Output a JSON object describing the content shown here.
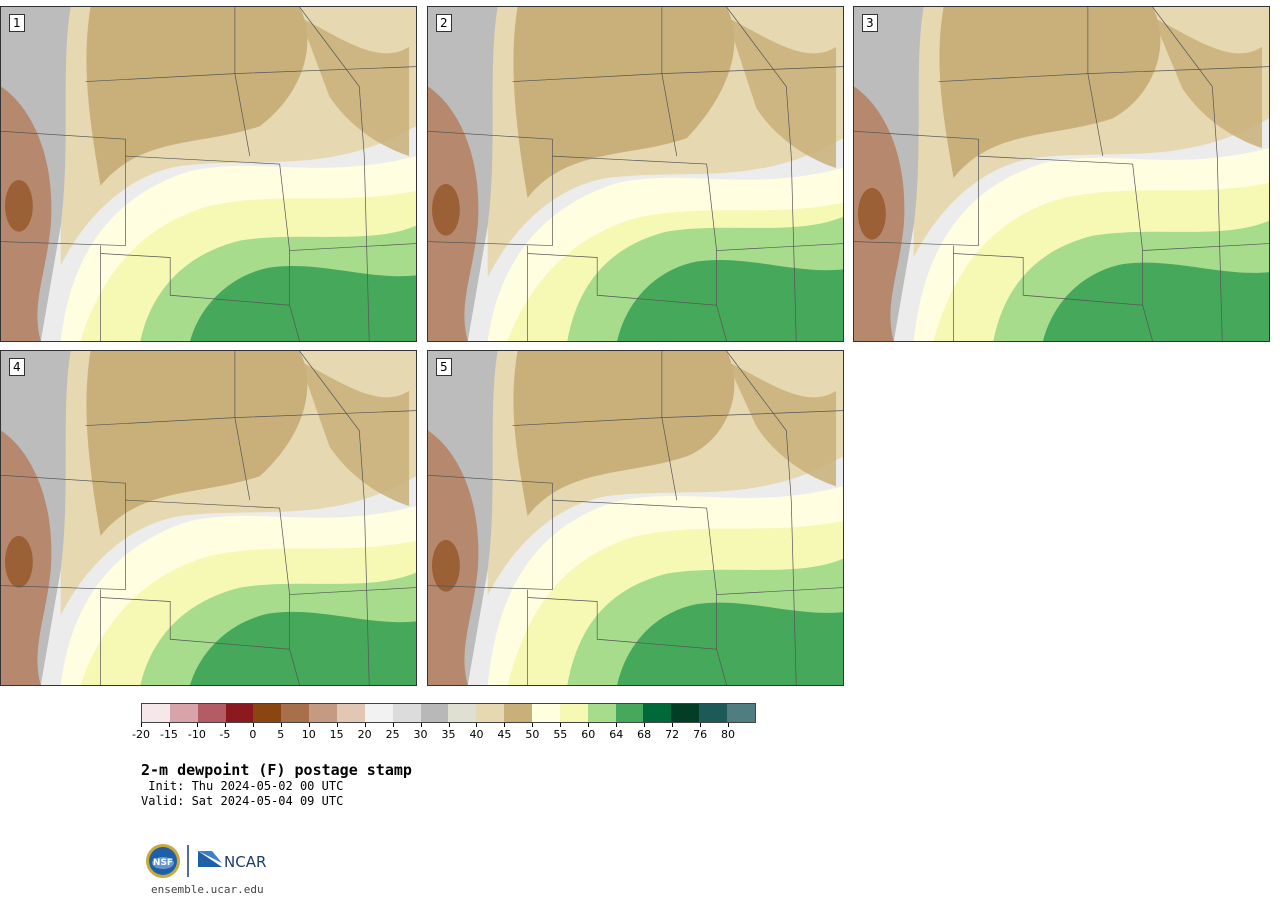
{
  "product": {
    "title": "2-m dewpoint (F) postage stamp",
    "init": " Init: Thu 2024-05-02 00 UTC",
    "valid": "Valid: Sat 2024-05-04 09 UTC"
  },
  "members": [
    "1",
    "2",
    "3",
    "4",
    "5"
  ],
  "colorbar": {
    "colors": [
      "#f6e8ea",
      "#d9a3aa",
      "#b45c66",
      "#8b1a1f",
      "#8b4510",
      "#a8704a",
      "#c49a82",
      "#e2c8b4",
      "#f2f2f2",
      "#dcdcdc",
      "#b8b8b8",
      "#e0e0d2",
      "#e6d8b0",
      "#c9b07a",
      "#ffffe0",
      "#f5f9b4",
      "#a6dc8c",
      "#46a85a",
      "#00693a",
      "#043d26",
      "#1d5a57",
      "#4f7d80"
    ],
    "tick_labels": [
      "-20",
      "-15",
      "-10",
      "-5",
      "0",
      "5",
      "10",
      "15",
      "20",
      "25",
      "30",
      "35",
      "40",
      "45",
      "50",
      "55",
      "60",
      "64",
      "68",
      "72",
      "76",
      "80"
    ]
  },
  "palette": {
    "light_gray": "#ececec",
    "mid_gray": "#bcbcbc",
    "tan": "#c9b07a",
    "light_tan": "#e6d8b0",
    "pale_yellow": "#fffee0",
    "light_yellow": "#f5f9b4",
    "light_green": "#a6dc8c",
    "green": "#46a85a",
    "brown": "#b47855",
    "dark_brown": "#8b4510"
  },
  "logo": {
    "nsf_text": "NSF",
    "ncar_text": "NCAR",
    "url": "ensemble.ucar.edu"
  }
}
